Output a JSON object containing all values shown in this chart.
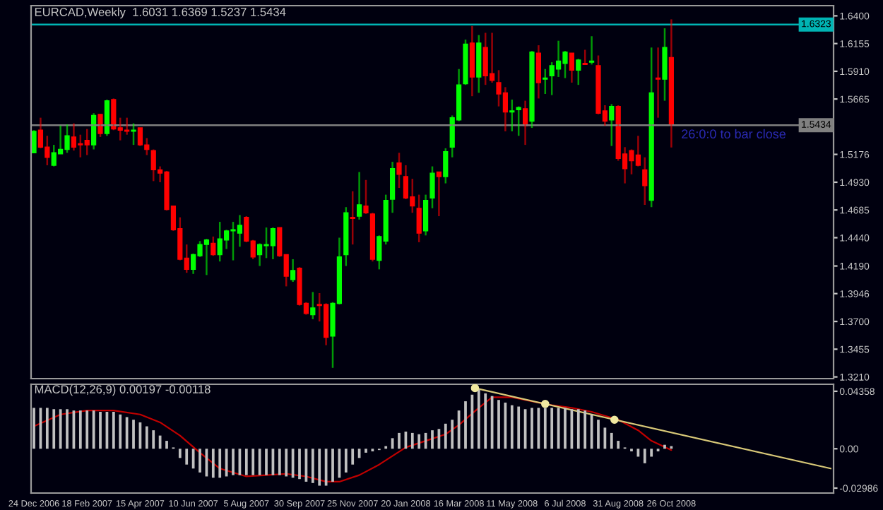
{
  "chart_data": [
    {
      "type": "candlestick",
      "title": "EURCAD,Weekly  1.6031 1.6369 1.5237 1.5434",
      "x": [
        "2006-12-24",
        "2006-12-31",
        "2007-01-07",
        "2007-01-14",
        "2007-01-21",
        "2007-01-28",
        "2007-02-04",
        "2007-02-11",
        "2007-02-18",
        "2007-02-25",
        "2007-03-04",
        "2007-03-11",
        "2007-03-18",
        "2007-03-25",
        "2007-04-01",
        "2007-04-08",
        "2007-04-15",
        "2007-04-22",
        "2007-04-29",
        "2007-05-06",
        "2007-05-13",
        "2007-05-20",
        "2007-05-27",
        "2007-06-03",
        "2007-06-10",
        "2007-06-17",
        "2007-06-24",
        "2007-07-01",
        "2007-07-08",
        "2007-07-15",
        "2007-07-22",
        "2007-07-29",
        "2007-08-05",
        "2007-08-12",
        "2007-08-19",
        "2007-08-26",
        "2007-09-02",
        "2007-09-09",
        "2007-09-16",
        "2007-09-23",
        "2007-09-30",
        "2007-10-07",
        "2007-10-14",
        "2007-10-21",
        "2007-10-28",
        "2007-11-04",
        "2007-11-11",
        "2007-11-18",
        "2007-11-25",
        "2007-12-02",
        "2007-12-09",
        "2007-12-16",
        "2007-12-23",
        "2007-12-30",
        "2008-01-06",
        "2008-01-13",
        "2008-01-20",
        "2008-01-27",
        "2008-02-03",
        "2008-02-10",
        "2008-02-17",
        "2008-02-24",
        "2008-03-02",
        "2008-03-09",
        "2008-03-16",
        "2008-03-23",
        "2008-03-30",
        "2008-04-06",
        "2008-04-13",
        "2008-04-20",
        "2008-04-27",
        "2008-05-04",
        "2008-05-11",
        "2008-05-18",
        "2008-05-25",
        "2008-06-01",
        "2008-06-08",
        "2008-06-15",
        "2008-06-22",
        "2008-06-29",
        "2008-07-06",
        "2008-07-13",
        "2008-07-20",
        "2008-07-27",
        "2008-08-03",
        "2008-08-10",
        "2008-08-17",
        "2008-08-24",
        "2008-08-31",
        "2008-09-07",
        "2008-09-14",
        "2008-09-21",
        "2008-09-28",
        "2008-10-05",
        "2008-10-12",
        "2008-10-19",
        "2008-10-26"
      ],
      "ohlc": [
        [
          1.519,
          1.539,
          1.519,
          1.538
        ],
        [
          1.539,
          1.55,
          1.523,
          1.524
        ],
        [
          1.524,
          1.534,
          1.508,
          1.515
        ],
        [
          1.508,
          1.526,
          1.507,
          1.519
        ],
        [
          1.518,
          1.543,
          1.518,
          1.522
        ],
        [
          1.522,
          1.544,
          1.519,
          1.534
        ],
        [
          1.533,
          1.545,
          1.521,
          1.524
        ],
        [
          1.527,
          1.535,
          1.515,
          1.526
        ],
        [
          1.53,
          1.54,
          1.517,
          1.526
        ],
        [
          1.526,
          1.554,
          1.522,
          1.552
        ],
        [
          1.553,
          1.553,
          1.533,
          1.536
        ],
        [
          1.536,
          1.566,
          1.534,
          1.565
        ],
        [
          1.566,
          1.567,
          1.539,
          1.54
        ],
        [
          1.541,
          1.55,
          1.53,
          1.539
        ],
        [
          1.539,
          1.55,
          1.535,
          1.538
        ],
        [
          1.538,
          1.545,
          1.526,
          1.539
        ],
        [
          1.541,
          1.541,
          1.525,
          1.526
        ],
        [
          1.526,
          1.532,
          1.517,
          1.522
        ],
        [
          1.521,
          1.522,
          1.494,
          1.504
        ],
        [
          1.504,
          1.507,
          1.493,
          1.501
        ],
        [
          1.502,
          1.503,
          1.468,
          1.469
        ],
        [
          1.472,
          1.472,
          1.45,
          1.451
        ],
        [
          1.452,
          1.462,
          1.424,
          1.425
        ],
        [
          1.426,
          1.438,
          1.413,
          1.416
        ],
        [
          1.416,
          1.43,
          1.412,
          1.429
        ],
        [
          1.428,
          1.441,
          1.427,
          1.438
        ],
        [
          1.438,
          1.443,
          1.411,
          1.442
        ],
        [
          1.439,
          1.445,
          1.428,
          1.429
        ],
        [
          1.429,
          1.458,
          1.423,
          1.443
        ],
        [
          1.442,
          1.451,
          1.434,
          1.45
        ],
        [
          1.45,
          1.458,
          1.424,
          1.451
        ],
        [
          1.448,
          1.464,
          1.436,
          1.455
        ],
        [
          1.462,
          1.463,
          1.44,
          1.441
        ],
        [
          1.441,
          1.442,
          1.425,
          1.427
        ],
        [
          1.429,
          1.439,
          1.419,
          1.438
        ],
        [
          1.437,
          1.453,
          1.426,
          1.438
        ],
        [
          1.437,
          1.453,
          1.425,
          1.452
        ],
        [
          1.453,
          1.453,
          1.427,
          1.428
        ],
        [
          1.429,
          1.429,
          1.401,
          1.41
        ],
        [
          1.407,
          1.425,
          1.405,
          1.415
        ],
        [
          1.417,
          1.418,
          1.384,
          1.385
        ],
        [
          1.386,
          1.387,
          1.376,
          1.377
        ],
        [
          1.376,
          1.396,
          1.372,
          1.382
        ],
        [
          1.385,
          1.395,
          1.37,
          1.384
        ],
        [
          1.385,
          1.386,
          1.349,
          1.356
        ],
        [
          1.357,
          1.387,
          1.329,
          1.386
        ],
        [
          1.386,
          1.444,
          1.385,
          1.427
        ],
        [
          1.429,
          1.471,
          1.419,
          1.466
        ],
        [
          1.462,
          1.485,
          1.438,
          1.461
        ],
        [
          1.463,
          1.502,
          1.46,
          1.473
        ],
        [
          1.472,
          1.495,
          1.465,
          1.466
        ],
        [
          1.465,
          1.466,
          1.423,
          1.425
        ],
        [
          1.424,
          1.446,
          1.416,
          1.445
        ],
        [
          1.441,
          1.482,
          1.438,
          1.477
        ],
        [
          1.478,
          1.511,
          1.466,
          1.505
        ],
        [
          1.51,
          1.519,
          1.488,
          1.5
        ],
        [
          1.498,
          1.508,
          1.478,
          1.479
        ],
        [
          1.48,
          1.496,
          1.466,
          1.472
        ],
        [
          1.47,
          1.482,
          1.44,
          1.448
        ],
        [
          1.45,
          1.482,
          1.446,
          1.477
        ],
        [
          1.479,
          1.507,
          1.47,
          1.501
        ],
        [
          1.502,
          1.502,
          1.463,
          1.498
        ],
        [
          1.498,
          1.523,
          1.492,
          1.52
        ],
        [
          1.524,
          1.552,
          1.515,
          1.55
        ],
        [
          1.548,
          1.593,
          1.547,
          1.579
        ],
        [
          1.58,
          1.619,
          1.579,
          1.615
        ],
        [
          1.616,
          1.631,
          1.569,
          1.586
        ],
        [
          1.586,
          1.623,
          1.572,
          1.616
        ],
        [
          1.612,
          1.625,
          1.579,
          1.587
        ],
        [
          1.589,
          1.625,
          1.581,
          1.583
        ],
        [
          1.581,
          1.592,
          1.56,
          1.571
        ],
        [
          1.572,
          1.577,
          1.538,
          1.555
        ],
        [
          1.555,
          1.566,
          1.538,
          1.556
        ],
        [
          1.557,
          1.56,
          1.534,
          1.559
        ],
        [
          1.558,
          1.565,
          1.526,
          1.543
        ],
        [
          1.547,
          1.609,
          1.541,
          1.608
        ],
        [
          1.607,
          1.614,
          1.567,
          1.581
        ],
        [
          1.584,
          1.593,
          1.571,
          1.585
        ],
        [
          1.587,
          1.599,
          1.57,
          1.596
        ],
        [
          1.593,
          1.618,
          1.586,
          1.6
        ],
        [
          1.598,
          1.609,
          1.585,
          1.608
        ],
        [
          1.607,
          1.607,
          1.581,
          1.592
        ],
        [
          1.592,
          1.602,
          1.579,
          1.601
        ],
        [
          1.598,
          1.61,
          1.597,
          1.597
        ],
        [
          1.599,
          1.622,
          1.597,
          1.6
        ],
        [
          1.596,
          1.605,
          1.553,
          1.554
        ],
        [
          1.556,
          1.561,
          1.543,
          1.547
        ],
        [
          1.548,
          1.562,
          1.525,
          1.56
        ],
        [
          1.56,
          1.561,
          1.512,
          1.514
        ],
        [
          1.518,
          1.524,
          1.492,
          1.505
        ],
        [
          1.521,
          1.522,
          1.5,
          1.512
        ],
        [
          1.517,
          1.534,
          1.507,
          1.508
        ],
        [
          1.504,
          1.515,
          1.473,
          1.49
        ],
        [
          1.477,
          1.612,
          1.471,
          1.572
        ],
        [
          1.585,
          1.612,
          1.55,
          1.584
        ],
        [
          1.584,
          1.629,
          1.565,
          1.612
        ],
        [
          1.6031,
          1.6369,
          1.5237,
          1.5434
        ]
      ],
      "colors": [
        "#00ff00",
        "#ff0000",
        "#ff0000",
        "#00ff00",
        "#00ff00",
        "#00ff00",
        "#ff0000",
        "#ff0000",
        "#ff0000",
        "#00ff00",
        "#ff0000",
        "#00ff00",
        "#ff0000",
        "#ff0000",
        "#ff0000",
        "#00ff00",
        "#ff0000",
        "#ff0000",
        "#ff0000",
        "#ff0000",
        "#ff0000",
        "#ff0000",
        "#ff0000",
        "#ff0000",
        "#00ff00",
        "#00ff00",
        "#00ff00",
        "#ff0000",
        "#00ff00",
        "#00ff00",
        "#00ff00",
        "#00ff00",
        "#ff0000",
        "#ff0000",
        "#00ff00",
        "#00ff00",
        "#00ff00",
        "#ff0000",
        "#ff0000",
        "#00ff00",
        "#ff0000",
        "#ff0000",
        "#00ff00",
        "#ff0000",
        "#ff0000",
        "#00ff00",
        "#00ff00",
        "#00ff00",
        "#ff0000",
        "#00ff00",
        "#ff0000",
        "#ff0000",
        "#00ff00",
        "#00ff00",
        "#00ff00",
        "#ff0000",
        "#ff0000",
        "#ff0000",
        "#ff0000",
        "#00ff00",
        "#00ff00",
        "#ff0000",
        "#00ff00",
        "#00ff00",
        "#00ff00",
        "#00ff00",
        "#ff0000",
        "#00ff00",
        "#ff0000",
        "#ff0000",
        "#ff0000",
        "#ff0000",
        "#00ff00",
        "#00ff00",
        "#ff0000",
        "#00ff00",
        "#ff0000",
        "#00ff00",
        "#00ff00",
        "#00ff00",
        "#00ff00",
        "#ff0000",
        "#00ff00",
        "#ff0000",
        "#00ff00",
        "#ff0000",
        "#ff0000",
        "#00ff00",
        "#ff0000",
        "#ff0000",
        "#ff0000",
        "#ff0000",
        "#ff0000",
        "#00ff00",
        "#ff0000",
        "#00ff00",
        "#ff0000"
      ],
      "xlim": [
        "2006-12-21",
        "2009-04-15"
      ],
      "ylim": [
        1.3195,
        1.649
      ],
      "yticks": [
        {
          "value": 1.64,
          "label": "1.6400"
        },
        {
          "value": 1.6155,
          "label": "1.6155"
        },
        {
          "value": 1.591,
          "label": "1.5910"
        },
        {
          "value": 1.5665,
          "label": "1.5665"
        },
        {
          "value": 1.5176,
          "label": "1.5176"
        },
        {
          "value": 1.493,
          "label": "1.4930"
        },
        {
          "value": 1.4685,
          "label": "1.4685"
        },
        {
          "value": 1.444,
          "label": "1.4440"
        },
        {
          "value": 1.419,
          "label": "1.4190"
        },
        {
          "value": 1.3946,
          "label": "1.3946"
        },
        {
          "value": 1.37,
          "label": "1.3700"
        },
        {
          "value": 1.3455,
          "label": "1.3455"
        },
        {
          "value": 1.321,
          "label": "1.3210"
        }
      ],
      "tick_labels": "y",
      "ref_lines": [
        {
          "axis": "y",
          "value": 1.6323,
          "label": "1.6323",
          "color": "#00b4b4"
        },
        {
          "axis": "y",
          "value": 1.5434,
          "label": "1.5434",
          "color": "#808080"
        }
      ],
      "annotations": [
        {
          "text": "26:0:0 to bar close",
          "x": "2008-10-26",
          "y": 1.5434
        }
      ]
    },
    {
      "type": "bar",
      "title": "MACD(12,26,9) 0.00197 -0.00118",
      "x": [
        "2006-12-24",
        "2006-12-31",
        "2007-01-07",
        "2007-01-14",
        "2007-01-21",
        "2007-01-28",
        "2007-02-04",
        "2007-02-11",
        "2007-02-18",
        "2007-02-25",
        "2007-03-04",
        "2007-03-11",
        "2007-03-18",
        "2007-03-25",
        "2007-04-01",
        "2007-04-08",
        "2007-04-15",
        "2007-04-22",
        "2007-04-29",
        "2007-05-06",
        "2007-05-13",
        "2007-05-20",
        "2007-05-27",
        "2007-06-03",
        "2007-06-10",
        "2007-06-17",
        "2007-06-24",
        "2007-07-01",
        "2007-07-08",
        "2007-07-15",
        "2007-07-22",
        "2007-07-29",
        "2007-08-05",
        "2007-08-12",
        "2007-08-19",
        "2007-08-26",
        "2007-09-02",
        "2007-09-09",
        "2007-09-16",
        "2007-09-23",
        "2007-09-30",
        "2007-10-07",
        "2007-10-14",
        "2007-10-21",
        "2007-10-28",
        "2007-11-04",
        "2007-11-11",
        "2007-11-18",
        "2007-11-25",
        "2007-12-02",
        "2007-12-09",
        "2007-12-16",
        "2007-12-23",
        "2007-12-30",
        "2008-01-06",
        "2008-01-13",
        "2008-01-20",
        "2008-01-27",
        "2008-02-03",
        "2008-02-10",
        "2008-02-17",
        "2008-02-24",
        "2008-03-02",
        "2008-03-09",
        "2008-03-16",
        "2008-03-23",
        "2008-03-30",
        "2008-04-06",
        "2008-04-13",
        "2008-04-20",
        "2008-04-27",
        "2008-05-04",
        "2008-05-11",
        "2008-05-18",
        "2008-05-25",
        "2008-06-01",
        "2008-06-08",
        "2008-06-15",
        "2008-06-22",
        "2008-06-29",
        "2008-07-06",
        "2008-07-13",
        "2008-07-20",
        "2008-07-27",
        "2008-08-03",
        "2008-08-10",
        "2008-08-17",
        "2008-08-24",
        "2008-08-31",
        "2008-09-07",
        "2008-09-14",
        "2008-09-21",
        "2008-09-28",
        "2008-10-05",
        "2008-10-12",
        "2008-10-19",
        "2008-10-26"
      ],
      "series": [
        {
          "type": "bar",
          "color": "#c0c0c0",
          "values": [
            0.031,
            0.031,
            0.031,
            0.03,
            0.03,
            0.03,
            0.029,
            0.029,
            0.029,
            0.029,
            0.028,
            0.028,
            0.028,
            0.026,
            0.024,
            0.022,
            0.02,
            0.017,
            0.014,
            0.01,
            0.006,
            0.001,
            -0.007,
            -0.012,
            -0.015,
            -0.018,
            -0.021,
            -0.022,
            -0.022,
            -0.021,
            -0.02,
            -0.02,
            -0.02,
            -0.02,
            -0.02,
            -0.02,
            -0.02,
            -0.02,
            -0.021,
            -0.022,
            -0.023,
            -0.025,
            -0.026,
            -0.028,
            -0.028,
            -0.025,
            -0.022,
            -0.018,
            -0.012,
            -0.007,
            -0.003,
            -0.002,
            -0.001,
            0.002,
            0.008,
            0.012,
            0.013,
            0.012,
            0.011,
            0.012,
            0.014,
            0.015,
            0.019,
            0.022,
            0.029,
            0.036,
            0.041,
            0.045,
            0.042,
            0.04,
            0.037,
            0.035,
            0.033,
            0.032,
            0.03,
            0.031,
            0.031,
            0.031,
            0.031,
            0.031,
            0.031,
            0.03,
            0.03,
            0.029,
            0.026,
            0.022,
            0.016,
            0.012,
            0.006,
            0.001,
            -0.002,
            -0.006,
            -0.011,
            -0.006,
            -0.002,
            0.003,
            0.002
          ]
        },
        {
          "type": "line",
          "color": "#c00000",
          "x": [
            "2006-12-24",
            "2007-01-21",
            "2007-02-18",
            "2007-03-18",
            "2007-04-15",
            "2007-05-06",
            "2007-05-27",
            "2007-06-17",
            "2007-07-08",
            "2007-08-05",
            "2007-08-26",
            "2007-09-16",
            "2007-10-07",
            "2007-10-28",
            "2007-11-11",
            "2007-12-02",
            "2007-12-23",
            "2008-01-20",
            "2008-02-10",
            "2008-03-02",
            "2008-03-16",
            "2008-04-06",
            "2008-04-20",
            "2008-05-11",
            "2008-06-01",
            "2008-06-22",
            "2008-07-13",
            "2008-08-03",
            "2008-08-31",
            "2008-09-21",
            "2008-10-05",
            "2008-10-26"
          ],
          "values": [
            0.017,
            0.026,
            0.029,
            0.029,
            0.026,
            0.02,
            0.01,
            -0.003,
            -0.015,
            -0.021,
            -0.02,
            -0.019,
            -0.021,
            -0.025,
            -0.025,
            -0.02,
            -0.012,
            0.001,
            0.006,
            0.011,
            0.018,
            0.031,
            0.039,
            0.039,
            0.036,
            0.033,
            0.031,
            0.028,
            0.022,
            0.014,
            0.006,
            -0.001
          ]
        },
        {
          "type": "line",
          "color": "#d8c878",
          "x": [
            "2008-04-02",
            "2009-04-12"
          ],
          "values": [
            0.046,
            -0.015
          ]
        },
        {
          "type": "scatter",
          "color": "#f0e8a0",
          "marker": "circle",
          "x": [
            "2008-04-02",
            "2008-06-15",
            "2008-08-27"
          ],
          "values": [
            0.046,
            0.034,
            0.022
          ]
        }
      ],
      "xlim": [
        "2006-12-21",
        "2009-04-15"
      ],
      "ylim": [
        -0.0336,
        0.0489
      ],
      "yticks": [
        {
          "value": 0.04358,
          "label": "0.04358"
        },
        {
          "value": 0,
          "label": "0.00"
        },
        {
          "value": -0.02986,
          "label": "-0.02986"
        }
      ],
      "xticks": [
        {
          "value": "2006-12-24",
          "label": "24 Dec 2006"
        },
        {
          "value": "2007-02-18",
          "label": "18 Feb 2007"
        },
        {
          "value": "2007-04-15",
          "label": "15 Apr 2007"
        },
        {
          "value": "2007-06-10",
          "label": "10 Jun 2007"
        },
        {
          "value": "2007-08-05",
          "label": "5 Aug 2007"
        },
        {
          "value": "2007-09-30",
          "label": "30 Sep 2007"
        },
        {
          "value": "2007-11-25",
          "label": "25 Nov 2007"
        },
        {
          "value": "2008-01-20",
          "label": "20 Jan 2008"
        },
        {
          "value": "2008-03-16",
          "label": "16 Mar 2008"
        },
        {
          "value": "2008-05-11",
          "label": "11 May 2008"
        },
        {
          "value": "2008-07-06",
          "label": "6 Jul 2008"
        },
        {
          "value": "2008-08-31",
          "label": "31 Aug 2008"
        },
        {
          "value": "2008-10-26",
          "label": "26 Oct 2008"
        }
      ]
    }
  ]
}
